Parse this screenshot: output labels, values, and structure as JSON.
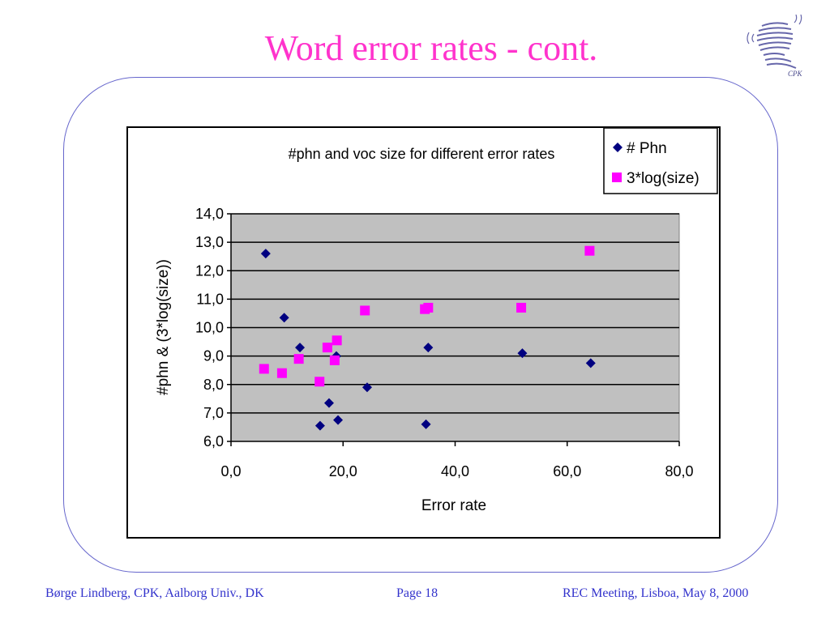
{
  "slide": {
    "title": "Word error rates - cont.",
    "logo_text": "CPK",
    "footer_left": "Børge Lindberg, CPK, Aalborg Univ., DK",
    "footer_page": "Page 18",
    "footer_right": "REC Meeting, Lisboa, May 8, 2000"
  },
  "colors": {
    "title": "#ff33cc",
    "footer": "#3333cc",
    "frame": "#6666cc",
    "plot_bg": "#c0c0c0",
    "series_phn": "#000080",
    "series_log": "#ff00ff"
  },
  "chart_data": {
    "type": "scatter",
    "title": "#phn and voc size for different error rates",
    "xlabel": "Error rate",
    "ylabel": "#phn &  (3*log(size))",
    "xlim": [
      0,
      80
    ],
    "ylim": [
      6,
      14
    ],
    "x_ticks": [
      "0,0",
      "20,0",
      "40,0",
      "60,0",
      "80,0"
    ],
    "y_ticks": [
      "6,0",
      "7,0",
      "8,0",
      "9,0",
      "10,0",
      "11,0",
      "12,0",
      "13,0",
      "14,0"
    ],
    "grid": true,
    "legend_position": "top-right",
    "series": [
      {
        "name": "# Phn",
        "marker": "diamond",
        "points": [
          [
            6.2,
            12.6
          ],
          [
            9.5,
            10.35
          ],
          [
            12.3,
            9.3
          ],
          [
            15.9,
            6.55
          ],
          [
            17.5,
            7.35
          ],
          [
            18.8,
            9.0
          ],
          [
            19.1,
            6.75
          ],
          [
            24.3,
            7.9
          ],
          [
            34.8,
            6.6
          ],
          [
            35.2,
            9.3
          ],
          [
            52.0,
            9.1
          ],
          [
            64.2,
            8.75
          ]
        ]
      },
      {
        "name": "3*log(size)",
        "marker": "square",
        "points": [
          [
            5.9,
            8.55
          ],
          [
            9.1,
            8.4
          ],
          [
            12.1,
            8.9
          ],
          [
            15.8,
            8.1
          ],
          [
            17.2,
            9.3
          ],
          [
            18.5,
            8.85
          ],
          [
            18.9,
            9.55
          ],
          [
            23.9,
            10.6
          ],
          [
            34.6,
            10.65
          ],
          [
            35.2,
            10.7
          ],
          [
            51.8,
            10.7
          ],
          [
            64.0,
            12.7
          ]
        ]
      }
    ]
  }
}
